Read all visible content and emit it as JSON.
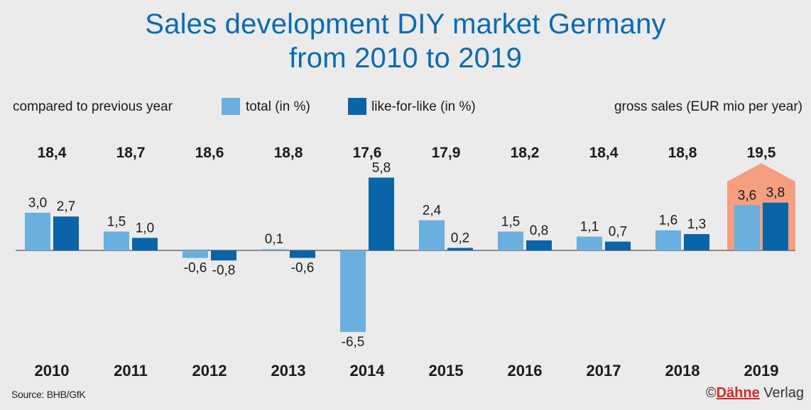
{
  "title_lines": [
    "Sales development DIY market Germany",
    "from 2010 to 2019"
  ],
  "legend": {
    "left_note": "compared to previous year",
    "total_label": "total (in %)",
    "lfl_label": "like-for-like (in %)",
    "right_note": "gross sales (EUR mio per year)"
  },
  "source": "Source: BHB/GfK",
  "copyright": {
    "symbol": "©",
    "brand": "Dähne",
    "suffix": " Verlag"
  },
  "colors": {
    "title": "#0a6ab2",
    "total": "#6aafde",
    "lfl": "#0a64a8",
    "highlight": "#f59e80",
    "axis": "#8a8a8a"
  },
  "chart_data": {
    "type": "bar",
    "categories": [
      "2010",
      "2011",
      "2012",
      "2013",
      "2014",
      "2015",
      "2016",
      "2017",
      "2018",
      "2019"
    ],
    "series": [
      {
        "name": "total (in %)",
        "values": [
          3.0,
          1.5,
          -0.6,
          0.1,
          -6.5,
          2.4,
          1.5,
          1.1,
          1.6,
          3.6
        ]
      },
      {
        "name": "like-for-like (in %)",
        "values": [
          2.7,
          1.0,
          -0.8,
          -0.6,
          5.8,
          0.2,
          0.8,
          0.7,
          1.3,
          3.8
        ]
      }
    ],
    "value_labels": {
      "total": [
        "3,0",
        "1,5",
        "-0,6",
        "0,1",
        "-6,5",
        "2,4",
        "1,5",
        "1,1",
        "1,6",
        "3,6"
      ],
      "lfl": [
        "2,7",
        "1,0",
        "-0,8",
        "-0,6",
        "5,8",
        "0,2",
        "0,8",
        "0,7",
        "1,3",
        "3,8"
      ]
    },
    "gross_sales": [
      "18,4",
      "18,7",
      "18,6",
      "18,8",
      "17,6",
      "17,9",
      "18,2",
      "18,4",
      "18,8",
      "19,5"
    ],
    "highlight_category": "2019",
    "ylim": [
      -6.5,
      5.8
    ],
    "grid": false,
    "legend_position": "top"
  }
}
